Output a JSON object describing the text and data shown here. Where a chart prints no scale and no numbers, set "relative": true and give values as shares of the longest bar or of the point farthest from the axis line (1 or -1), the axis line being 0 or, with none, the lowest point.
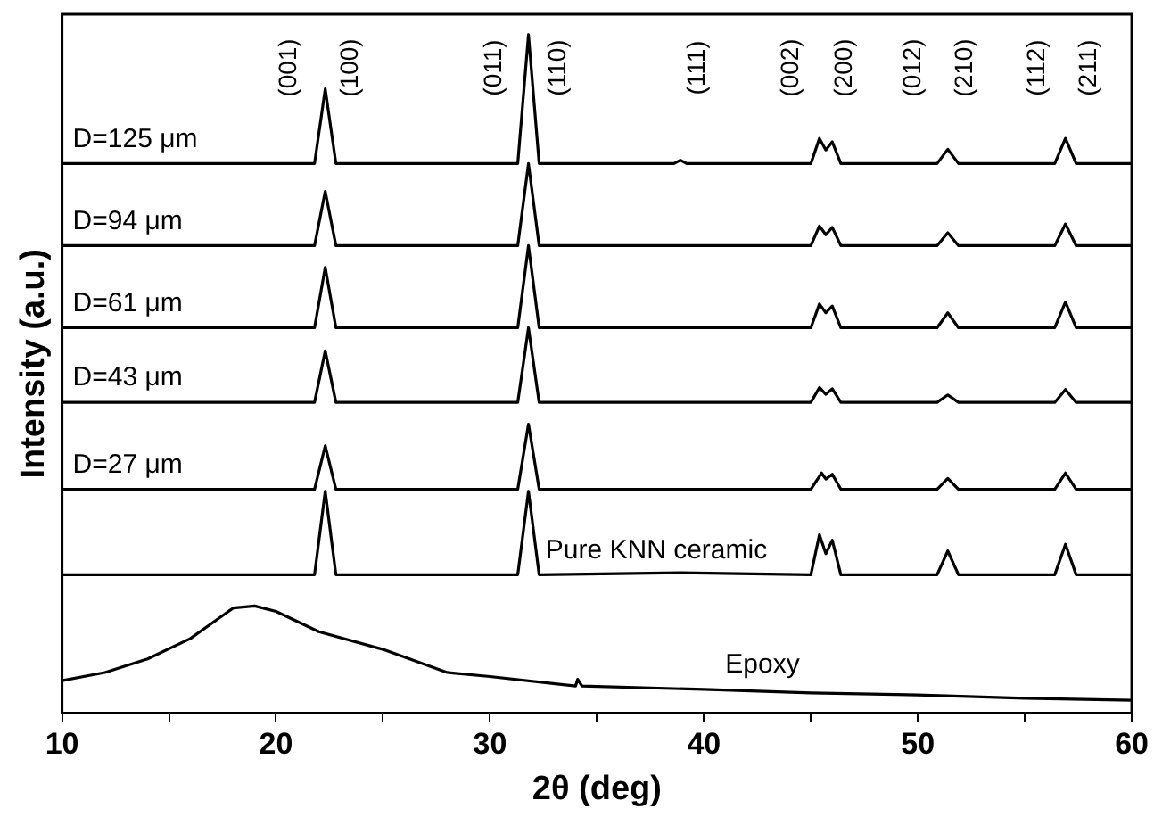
{
  "chart_data": {
    "type": "line",
    "relative": true,
    "xlabel": "2θ (deg)",
    "ylabel": "Intensity (a.u.)",
    "xlim": [
      10,
      60
    ],
    "xticks": [
      10,
      {
        "value": 15,
        "label": null
      },
      20,
      {
        "value": 25,
        "label": null
      },
      30,
      {
        "value": 35,
        "label": null
      },
      40,
      {
        "value": 45,
        "label": null
      },
      50,
      {
        "value": 55,
        "label": null
      },
      60
    ],
    "grid": false,
    "legend": false,
    "marker": "none",
    "line_style": "solid",
    "series": [
      {
        "name": "D=125 μm",
        "color": "#000000",
        "x": [
          10,
          21.8,
          22.3,
          22.8,
          31.3,
          31.8,
          32.3,
          38.6,
          38.9,
          39.2,
          45.0,
          45.4,
          45.7,
          46.0,
          46.4,
          50.9,
          51.4,
          51.9,
          56.4,
          56.9,
          57.4,
          60
        ],
        "values": [
          0.81,
          0.81,
          0.92,
          0.81,
          0.81,
          1.0,
          0.81,
          0.81,
          0.815,
          0.81,
          0.81,
          0.847,
          0.83,
          0.842,
          0.81,
          0.81,
          0.831,
          0.81,
          0.81,
          0.847,
          0.81,
          0.81
        ]
      },
      {
        "name": "D=94 μm",
        "color": "#000000",
        "x": [
          10,
          21.8,
          22.3,
          22.8,
          31.3,
          31.8,
          32.3,
          45.0,
          45.4,
          45.7,
          46.0,
          46.4,
          50.9,
          51.4,
          51.9,
          56.4,
          56.9,
          57.4,
          60
        ],
        "values": [
          0.689,
          0.689,
          0.769,
          0.689,
          0.689,
          0.81,
          0.689,
          0.689,
          0.718,
          0.705,
          0.716,
          0.689,
          0.689,
          0.708,
          0.689,
          0.689,
          0.721,
          0.689,
          0.689
        ]
      },
      {
        "name": "D=61 μm",
        "color": "#000000",
        "x": [
          10,
          21.8,
          22.3,
          22.8,
          31.3,
          31.8,
          32.3,
          45.0,
          45.4,
          45.7,
          46.0,
          46.4,
          50.9,
          51.4,
          51.9,
          56.4,
          56.9,
          57.4,
          60
        ],
        "values": [
          0.568,
          0.568,
          0.657,
          0.568,
          0.568,
          0.689,
          0.568,
          0.568,
          0.603,
          0.59,
          0.6,
          0.568,
          0.568,
          0.59,
          0.568,
          0.568,
          0.606,
          0.568,
          0.568
        ]
      },
      {
        "name": "D=43 μm",
        "color": "#000000",
        "x": [
          10,
          21.8,
          22.3,
          22.8,
          31.3,
          31.8,
          32.3,
          45.0,
          45.4,
          45.7,
          46.0,
          46.4,
          50.9,
          51.4,
          51.9,
          56.4,
          56.9,
          57.4,
          60
        ],
        "values": [
          0.458,
          0.458,
          0.534,
          0.458,
          0.458,
          0.568,
          0.458,
          0.458,
          0.48,
          0.47,
          0.478,
          0.458,
          0.458,
          0.469,
          0.458,
          0.458,
          0.477,
          0.458,
          0.458
        ]
      },
      {
        "name": "D=27 μm",
        "color": "#000000",
        "x": [
          10,
          21.8,
          22.3,
          22.8,
          31.3,
          31.8,
          32.3,
          45.0,
          45.5,
          45.7,
          46.0,
          46.4,
          50.9,
          51.4,
          51.9,
          56.4,
          56.9,
          57.4,
          60
        ],
        "values": [
          0.33,
          0.33,
          0.394,
          0.33,
          0.33,
          0.426,
          0.33,
          0.33,
          0.354,
          0.345,
          0.352,
          0.33,
          0.33,
          0.346,
          0.33,
          0.33,
          0.354,
          0.33,
          0.33
        ]
      },
      {
        "name": "Pure KNN ceramic",
        "color": "#000000",
        "x": [
          10,
          21.8,
          22.3,
          22.8,
          31.3,
          31.8,
          32.3,
          38.9,
          45.0,
          45.4,
          45.7,
          46.0,
          46.4,
          50.9,
          51.4,
          51.9,
          56.4,
          56.9,
          57.4,
          60
        ],
        "values": [
          0.204,
          0.204,
          0.327,
          0.204,
          0.204,
          0.327,
          0.204,
          0.207,
          0.204,
          0.263,
          0.235,
          0.255,
          0.204,
          0.204,
          0.239,
          0.204,
          0.204,
          0.249,
          0.204,
          0.204
        ]
      },
      {
        "name": "Epoxy",
        "color": "#000000",
        "x": [
          10,
          12,
          14,
          16,
          18,
          19,
          20,
          22,
          25,
          28,
          30,
          34,
          34.1,
          34.3,
          40,
          45,
          50,
          55,
          60
        ],
        "values": [
          0.048,
          0.06,
          0.08,
          0.11,
          0.155,
          0.158,
          0.15,
          0.12,
          0.094,
          0.06,
          0.054,
          0.04,
          0.05,
          0.04,
          0.035,
          0.03,
          0.027,
          0.022,
          0.019
        ]
      }
    ],
    "annotations": [
      "(001)",
      "(100)",
      "(011)",
      "(110)",
      "(111)",
      "(002)",
      "(200)",
      "(012)",
      "(210)",
      "(112)",
      "(211)"
    ]
  }
}
